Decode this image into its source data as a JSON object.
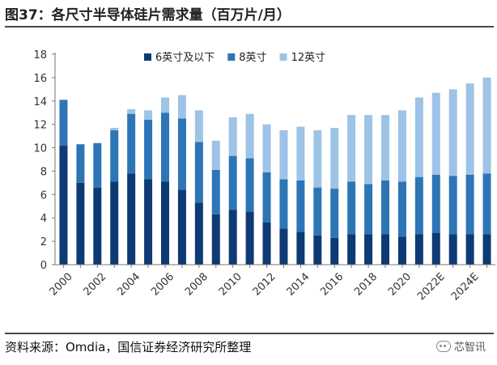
{
  "figure": {
    "title": "图37：各尺寸半导体硅片需求量（百万片/月）",
    "source": "资料来源：Omdia，国信证券经济研究所整理",
    "watermark": "芯智讯",
    "watermark_icon": "wechat-icon"
  },
  "chart_data": {
    "type": "bar",
    "stacked": true,
    "categories": [
      "2000",
      "2001",
      "2002",
      "2003",
      "2004",
      "2005",
      "2006",
      "2007",
      "2008",
      "2009",
      "2010",
      "2011",
      "2012",
      "2013",
      "2014",
      "2015",
      "2016",
      "2017",
      "2018",
      "2019",
      "2020",
      "2021",
      "2022E",
      "2023E",
      "2024E",
      "2025E"
    ],
    "x_tick_labels": [
      "2000",
      "2002",
      "2004",
      "2006",
      "2008",
      "2010",
      "2012",
      "2014",
      "2016",
      "2018",
      "2020",
      "2022E",
      "2024E"
    ],
    "series": [
      {
        "name": "6英寸及以下",
        "color": "#0d3a73",
        "values": [
          10.2,
          7.0,
          6.6,
          7.1,
          7.8,
          7.3,
          7.1,
          6.4,
          5.3,
          4.3,
          4.7,
          4.5,
          3.6,
          3.1,
          2.8,
          2.5,
          2.3,
          2.6,
          2.6,
          2.6,
          2.4,
          2.6,
          2.7,
          2.6,
          2.6,
          2.6
        ]
      },
      {
        "name": "8英寸",
        "color": "#2e75b6",
        "values": [
          3.9,
          3.3,
          3.8,
          4.4,
          5.1,
          5.1,
          5.9,
          6.1,
          5.2,
          3.8,
          4.6,
          4.6,
          4.3,
          4.2,
          4.4,
          4.1,
          4.2,
          4.5,
          4.3,
          4.6,
          4.7,
          4.9,
          5.0,
          5.0,
          5.1,
          5.2
        ]
      },
      {
        "name": "12英寸",
        "color": "#9dc3e6",
        "values": [
          0,
          0,
          0,
          0.2,
          0.4,
          0.8,
          1.3,
          2.0,
          2.7,
          2.5,
          3.3,
          3.8,
          4.1,
          4.2,
          4.6,
          4.9,
          5.2,
          5.7,
          5.9,
          5.6,
          6.1,
          6.8,
          7.0,
          7.4,
          7.8,
          8.2
        ]
      }
    ],
    "ylim": [
      0,
      18
    ],
    "yticks": [
      0,
      2,
      4,
      6,
      8,
      10,
      12,
      14,
      16,
      18
    ],
    "grid": false,
    "legend": "top"
  }
}
